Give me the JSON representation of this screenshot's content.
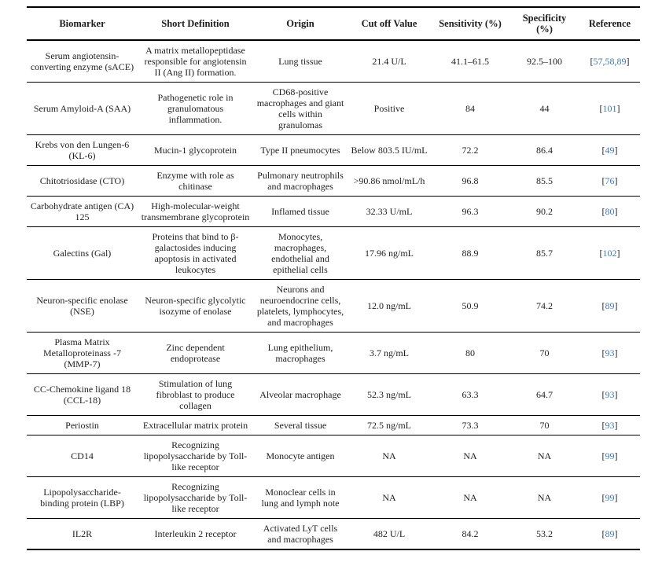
{
  "colors": {
    "text": "#1f1f1f",
    "citation_link": "#3b78b8",
    "rule": "#000000",
    "background": "#ffffff"
  },
  "table": {
    "columns": [
      {
        "key": "biomarker",
        "label": "Biomarker"
      },
      {
        "key": "definition",
        "label": "Short Definition"
      },
      {
        "key": "origin",
        "label": "Origin"
      },
      {
        "key": "cutoff",
        "label": "Cut off Value"
      },
      {
        "key": "sensitivity",
        "label": "Sensitivity (%)"
      },
      {
        "key": "specificity",
        "label": "Specificity (%)"
      },
      {
        "key": "reference",
        "label": "Reference"
      }
    ],
    "rows": [
      {
        "biomarker": "Serum angiotensin-converting enzyme (sACE)",
        "definition": "A matrix metallopeptidase responsible for angiotensin II (Ang II) formation.",
        "origin": "Lung tissue",
        "cutoff": "21.4 U/L",
        "sensitivity": "41.1–61.5",
        "specificity": "92.5–100",
        "reference": "[57,58,89]"
      },
      {
        "biomarker": "Serum Amyloid-A (SAA)",
        "definition": "Pathogenetic role in granulomatous inflammation.",
        "origin": "CD68-positive macrophages and giant cells within granulomas",
        "cutoff": "Positive",
        "sensitivity": "84",
        "specificity": "44",
        "reference": "[101]"
      },
      {
        "biomarker": "Krebs von den Lungen-6 (KL-6)",
        "definition": "Mucin-1 glycoprotein",
        "origin": "Type II pneumocytes",
        "cutoff": "Below 803.5 IU/mL",
        "sensitivity": "72.2",
        "specificity": "86.4",
        "reference": "[49]"
      },
      {
        "biomarker": "Chitotriosidase (CTO)",
        "definition": "Enzyme with role as chitinase",
        "origin": "Pulmonary neutrophils and macrophages",
        "cutoff": ">90.86 nmol/mL/h",
        "sensitivity": "96.8",
        "specificity": "85.5",
        "reference": "[76]"
      },
      {
        "biomarker": "Carbohydrate antigen (CA) 125",
        "definition": "High-molecular-weight transmembrane glycoprotein",
        "origin": "Inflamed tissue",
        "cutoff": "32.33 U/mL",
        "sensitivity": "96.3",
        "specificity": "90.2",
        "reference": "[80]"
      },
      {
        "biomarker": "Galectins (Gal)",
        "definition": "Proteins that bind to β-galactosides inducing apoptosis in activated leukocytes",
        "origin": "Monocytes, macrophages, endothelial and epithelial cells",
        "cutoff": "17.96 ng/mL",
        "sensitivity": "88.9",
        "specificity": "85.7",
        "reference": "[102]"
      },
      {
        "biomarker": "Neuron-specific enolase (NSE)",
        "definition": "Neuron-specific glycolytic isozyme of enolase",
        "origin": "Neurons and neuroendocrine cells, platelets, lymphocytes, and macrophages",
        "cutoff": "12.0 ng/mL",
        "sensitivity": "50.9",
        "specificity": "74.2",
        "reference": "[89]"
      },
      {
        "biomarker": "Plasma Matrix Metalloproteinass -7 (MMP-7)",
        "definition": "Zinc dependent endoprotease",
        "origin": "Lung epithelium, macrophages",
        "cutoff": "3.7 ng/mL",
        "sensitivity": "80",
        "specificity": "70",
        "reference": "[93]"
      },
      {
        "biomarker": "CC-Chemokine ligand 18 (CCL-18)",
        "definition": "Stimulation of lung fibroblast to produce collagen",
        "origin": "Alveolar macrophage",
        "cutoff": "52.3 ng/mL",
        "sensitivity": "63.3",
        "specificity": "64.7",
        "reference": "[93]"
      },
      {
        "biomarker": "Periostin",
        "definition": "Extracellular matrix protein",
        "origin": "Several tissue",
        "cutoff": "72.5 ng/mL",
        "sensitivity": "73.3",
        "specificity": "70",
        "reference": "[93]"
      },
      {
        "biomarker": "CD14",
        "definition": "Recognizing lipopolysaccharide by Toll-like receptor",
        "origin": "Monocyte antigen",
        "cutoff": "NA",
        "sensitivity": "NA",
        "specificity": "NA",
        "reference": "[99]"
      },
      {
        "biomarker": "Lipopolysaccharide-binding protein (LBP)",
        "definition": "Recognizing lipopolysaccharide by Toll-like receptor",
        "origin": "Monoclear cells in lung and lymph note",
        "cutoff": "NA",
        "sensitivity": "NA",
        "specificity": "NA",
        "reference": "[99]"
      },
      {
        "biomarker": "IL2R",
        "definition": "Interleukin 2 receptor",
        "origin": "Activated LyT cells and macrophages",
        "cutoff": "482 U/L",
        "sensitivity": "84.2",
        "specificity": "53.2",
        "reference": "[89]"
      }
    ]
  }
}
